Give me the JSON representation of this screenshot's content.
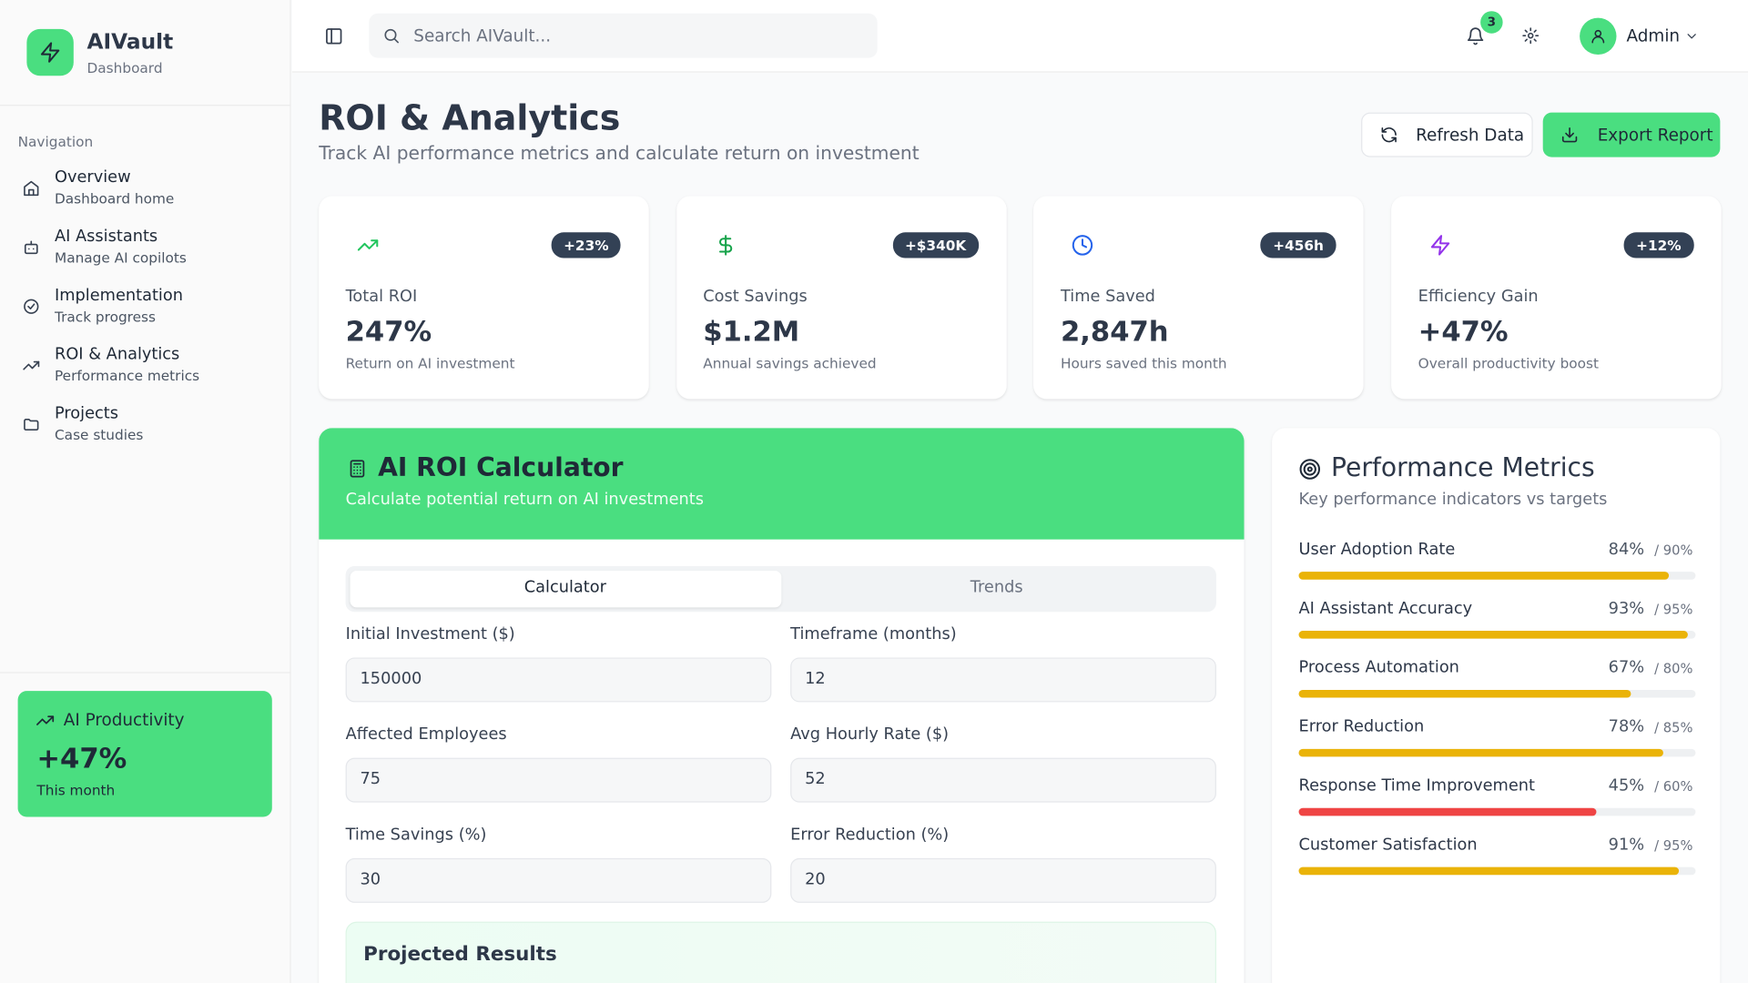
{
  "brand": {
    "name": "AIVault",
    "subtitle": "Dashboard"
  },
  "search": {
    "placeholder": "Search AIVault..."
  },
  "header": {
    "notifications": 3,
    "user": "Admin"
  },
  "nav": {
    "heading": "Navigation",
    "items": [
      {
        "label": "Overview",
        "sub": "Dashboard home"
      },
      {
        "label": "AI Assistants",
        "sub": "Manage AI copilots"
      },
      {
        "label": "Implementation",
        "sub": "Track progress"
      },
      {
        "label": "ROI & Analytics",
        "sub": "Performance metrics"
      },
      {
        "label": "Projects",
        "sub": "Case studies"
      }
    ]
  },
  "promo": {
    "title": "AI Productivity",
    "value": "+47%",
    "caption": "This month"
  },
  "page": {
    "title": "ROI & Analytics",
    "subtitle": "Track AI performance metrics and calculate return on investment",
    "buttons": [
      "Refresh Data",
      "Export Report"
    ]
  },
  "stats": [
    {
      "badge": "+23%",
      "label": "Total ROI",
      "value": "247%",
      "caption": "Return on AI investment"
    },
    {
      "badge": "+$340K",
      "label": "Cost Savings",
      "value": "$1.2M",
      "caption": "Annual savings achieved"
    },
    {
      "badge": "+456h",
      "label": "Time Saved",
      "value": "2,847h",
      "caption": "Hours saved this month"
    },
    {
      "badge": "+12%",
      "label": "Efficiency Gain",
      "value": "+47%",
      "caption": "Overall productivity boost"
    }
  ],
  "calculator": {
    "title": "AI ROI Calculator",
    "subtitle": "Calculate potential return on AI investments",
    "tabs": [
      "Calculator",
      "Trends"
    ],
    "fields": [
      {
        "label": "Initial Investment ($)",
        "value": 150000
      },
      {
        "label": "Timeframe (months)",
        "value": 12
      },
      {
        "label": "Affected Employees",
        "value": 75
      },
      {
        "label": "Avg Hourly Rate ($)",
        "value": 52
      },
      {
        "label": "Time Savings (%)",
        "value": 30
      },
      {
        "label": "Error Reduction (%)",
        "value": 20
      }
    ],
    "results_title": "Projected Results"
  },
  "metrics": {
    "title": "Performance Metrics",
    "subtitle": "Key performance indicators vs targets",
    "items": [
      {
        "name": "User Adoption Rate",
        "value": {
          "value": 84,
          "label": "84%"
        },
        "target": {
          "value": 90,
          "label": "/ 90%"
        },
        "color": "#eab308"
      },
      {
        "name": "AI Assistant Accuracy",
        "value": {
          "value": 93,
          "label": "93%"
        },
        "target": {
          "value": 95,
          "label": "/ 95%"
        },
        "color": "#eab308"
      },
      {
        "name": "Process Automation",
        "value": {
          "value": 67,
          "label": "67%"
        },
        "target": {
          "value": 80,
          "label": "/ 80%"
        },
        "color": "#eab308"
      },
      {
        "name": "Error Reduction",
        "value": {
          "value": 78,
          "label": "78%"
        },
        "target": {
          "value": 85,
          "label": "/ 85%"
        },
        "color": "#eab308"
      },
      {
        "name": "Response Time Improvement",
        "value": {
          "value": 45,
          "label": "45%"
        },
        "target": {
          "value": 60,
          "label": "/ 60%"
        },
        "color": "#ef4444"
      },
      {
        "name": "Customer Satisfaction",
        "value": {
          "value": 91,
          "label": "91%"
        },
        "target": {
          "value": 95,
          "label": "/ 95%"
        },
        "color": "#eab308"
      }
    ]
  }
}
